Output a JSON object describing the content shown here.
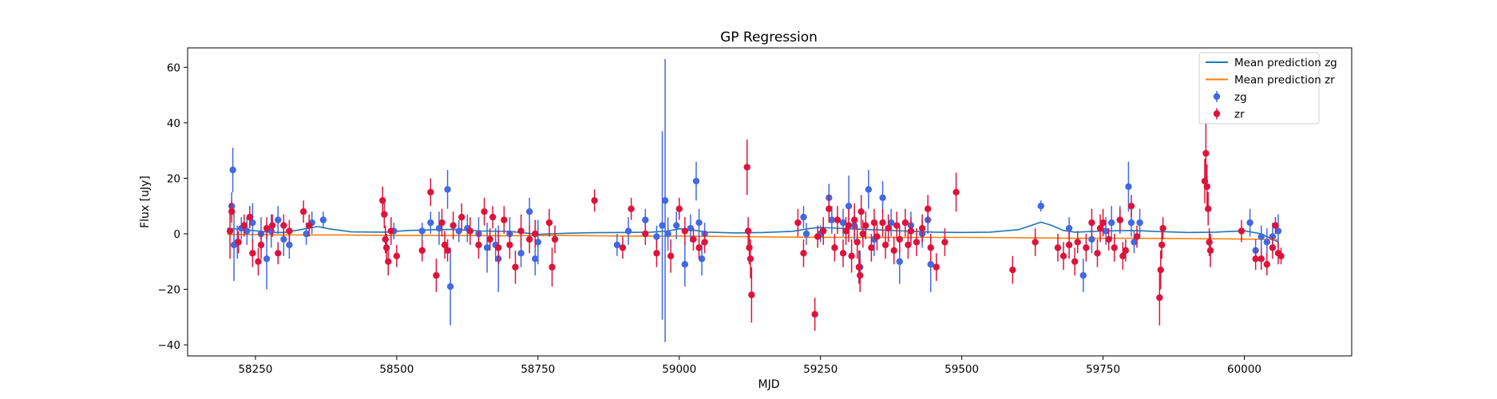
{
  "chart_data": {
    "type": "scatter",
    "title": "GP Regression",
    "xlabel": "MJD",
    "ylabel": "Flux [uJy]",
    "xlim": [
      58130,
      60190
    ],
    "ylim": [
      -44,
      67
    ],
    "xticks": [
      58250,
      58500,
      58750,
      59000,
      59250,
      59500,
      59750,
      60000
    ],
    "yticks": [
      -40,
      -20,
      0,
      20,
      40,
      60
    ],
    "grid": false,
    "legend_position": "top-right",
    "colors": {
      "zg_line": "#1f77b4",
      "zr_line": "#ff7f0e",
      "zg_points": "#4169e1",
      "zr_points": "#dc143c"
    },
    "series": [
      {
        "name": "Mean prediction zg",
        "kind": "line",
        "x": [
          58200,
          58240,
          58280,
          58300,
          58330,
          58360,
          58380,
          58420,
          58480,
          58520,
          58560,
          58600,
          58650,
          58700,
          58750,
          58800,
          58850,
          58900,
          58950,
          58980,
          59000,
          59030,
          59050,
          59100,
          59150,
          59200,
          59230,
          59250,
          59280,
          59300,
          59350,
          59400,
          59450,
          59500,
          59550,
          59600,
          59620,
          59640,
          59660,
          59680,
          59700,
          59750,
          59800,
          59850,
          59900,
          59950,
          59980,
          60000,
          60030,
          60060
        ],
        "y": [
          2.0,
          1.3,
          0.5,
          0.5,
          1.5,
          2.6,
          1.8,
          0.7,
          0.6,
          1.2,
          1.4,
          1.6,
          1.0,
          0.9,
          -0.2,
          0.2,
          0.4,
          0.5,
          0.6,
          1.0,
          1.8,
          1.2,
          0.6,
          0.3,
          0.5,
          0.9,
          1.9,
          2.3,
          2.0,
          1.8,
          1.4,
          1.0,
          0.6,
          0.5,
          0.6,
          1.5,
          2.8,
          4.2,
          3.0,
          1.2,
          0.6,
          1.0,
          1.2,
          0.8,
          0.5,
          0.6,
          0.9,
          1.1,
          0.0,
          -3.0
        ]
      },
      {
        "name": "Mean prediction zr",
        "kind": "line",
        "x": [
          58200,
          58300,
          58400,
          58500,
          58600,
          58700,
          58800,
          58900,
          59000,
          59100,
          59200,
          59300,
          59400,
          59500,
          59600,
          59700,
          59800,
          59900,
          60000,
          60040,
          60060
        ],
        "y": [
          -0.2,
          -0.4,
          -0.4,
          -0.6,
          -0.6,
          -0.7,
          -0.6,
          -0.8,
          -0.8,
          -1.0,
          -1.2,
          -1.3,
          -1.3,
          -1.3,
          -1.4,
          -1.6,
          -1.6,
          -1.7,
          -1.9,
          -2.0,
          -2.2
        ]
      },
      {
        "name": "zg",
        "kind": "errorbar",
        "points": [
          [
            58210,
            23,
            8
          ],
          [
            58208,
            10,
            5
          ],
          [
            58212,
            -4,
            13
          ],
          [
            58218,
            -3,
            6
          ],
          [
            58225,
            2,
            4
          ],
          [
            58235,
            1,
            5
          ],
          [
            58245,
            4,
            7
          ],
          [
            58260,
            0,
            6
          ],
          [
            58270,
            -9,
            11
          ],
          [
            58278,
            1,
            6
          ],
          [
            58290,
            5,
            5
          ],
          [
            58300,
            -2,
            6
          ],
          [
            58310,
            -4,
            5
          ],
          [
            58340,
            0,
            4
          ],
          [
            58350,
            4,
            4
          ],
          [
            58370,
            5,
            3
          ],
          [
            58495,
            1,
            3
          ],
          [
            58545,
            1,
            3
          ],
          [
            58560,
            4,
            4
          ],
          [
            58575,
            2,
            6
          ],
          [
            58590,
            16,
            7
          ],
          [
            58595,
            -19,
            14
          ],
          [
            58610,
            1,
            4
          ],
          [
            58625,
            2,
            5
          ],
          [
            58645,
            0,
            6
          ],
          [
            58660,
            -5,
            9
          ],
          [
            58675,
            -4,
            6
          ],
          [
            58680,
            -9,
            12
          ],
          [
            58700,
            0,
            6
          ],
          [
            58720,
            -7,
            5
          ],
          [
            58735,
            8,
            5
          ],
          [
            58745,
            -9,
            6
          ],
          [
            58750,
            -3,
            8
          ],
          [
            58890,
            -4,
            4
          ],
          [
            58910,
            1,
            5
          ],
          [
            58940,
            5,
            4
          ],
          [
            58960,
            -1,
            4
          ],
          [
            58970,
            3,
            34
          ],
          [
            58975,
            12,
            51
          ],
          [
            58980,
            0,
            6
          ],
          [
            58995,
            3,
            5
          ],
          [
            59010,
            -11,
            8
          ],
          [
            59020,
            2,
            5
          ],
          [
            59030,
            19,
            7
          ],
          [
            59035,
            4,
            5
          ],
          [
            59040,
            -9,
            6
          ],
          [
            59045,
            0,
            4
          ],
          [
            59220,
            6,
            4
          ],
          [
            59225,
            0,
            4
          ],
          [
            59250,
            0,
            3
          ],
          [
            59265,
            13,
            5
          ],
          [
            59270,
            5,
            5
          ],
          [
            59290,
            4,
            5
          ],
          [
            59300,
            10,
            11
          ],
          [
            59310,
            3,
            6
          ],
          [
            59320,
            -12,
            6
          ],
          [
            59335,
            16,
            7
          ],
          [
            59345,
            -2,
            6
          ],
          [
            59360,
            13,
            6
          ],
          [
            59375,
            4,
            5
          ],
          [
            59390,
            -10,
            8
          ],
          [
            59410,
            3,
            5
          ],
          [
            59430,
            0,
            5
          ],
          [
            59440,
            5,
            5
          ],
          [
            59445,
            -11,
            10
          ],
          [
            59640,
            10,
            2
          ],
          [
            59690,
            2,
            4
          ],
          [
            59715,
            -15,
            6
          ],
          [
            59730,
            -2,
            5
          ],
          [
            59755,
            1,
            5
          ],
          [
            59765,
            4,
            6
          ],
          [
            59780,
            5,
            5
          ],
          [
            59795,
            17,
            9
          ],
          [
            59800,
            4,
            5
          ],
          [
            59805,
            -3,
            4
          ],
          [
            59815,
            4,
            5
          ],
          [
            60010,
            4,
            5
          ],
          [
            60020,
            -6,
            4
          ],
          [
            60030,
            -1,
            4
          ],
          [
            60040,
            -3,
            5
          ],
          [
            60050,
            -1,
            5
          ],
          [
            60060,
            1,
            6
          ]
        ]
      },
      {
        "name": "zr",
        "kind": "errorbar",
        "points": [
          [
            58205,
            1,
            10
          ],
          [
            58208,
            8,
            4
          ],
          [
            58220,
            -3,
            4
          ],
          [
            58230,
            3,
            4
          ],
          [
            58240,
            6,
            4
          ],
          [
            58245,
            -7,
            5
          ],
          [
            58255,
            -10,
            5
          ],
          [
            58260,
            -4,
            5
          ],
          [
            58270,
            2,
            4
          ],
          [
            58280,
            3,
            4
          ],
          [
            58290,
            -7,
            4
          ],
          [
            58300,
            3,
            4
          ],
          [
            58310,
            1,
            4
          ],
          [
            58335,
            8,
            4
          ],
          [
            58345,
            3,
            4
          ],
          [
            58475,
            12,
            5
          ],
          [
            58478,
            7,
            5
          ],
          [
            58480,
            -2,
            5
          ],
          [
            58482,
            -5,
            5
          ],
          [
            58485,
            -10,
            5
          ],
          [
            58490,
            1,
            5
          ],
          [
            58500,
            -8,
            4
          ],
          [
            58545,
            -6,
            4
          ],
          [
            58560,
            15,
            5
          ],
          [
            58570,
            -15,
            6
          ],
          [
            58580,
            4,
            5
          ],
          [
            58585,
            -4,
            5
          ],
          [
            58590,
            -6,
            4
          ],
          [
            58600,
            3,
            5
          ],
          [
            58615,
            6,
            5
          ],
          [
            58630,
            1,
            5
          ],
          [
            58645,
            -4,
            5
          ],
          [
            58655,
            8,
            5
          ],
          [
            58665,
            -2,
            4
          ],
          [
            58670,
            6,
            4
          ],
          [
            58680,
            -5,
            6
          ],
          [
            58690,
            5,
            5
          ],
          [
            58700,
            -4,
            5
          ],
          [
            58710,
            -12,
            6
          ],
          [
            58720,
            1,
            6
          ],
          [
            58735,
            -2,
            5
          ],
          [
            58745,
            0,
            5
          ],
          [
            58770,
            4,
            5
          ],
          [
            58775,
            -12,
            7
          ],
          [
            58780,
            -2,
            5
          ],
          [
            58850,
            12,
            4
          ],
          [
            58900,
            -5,
            4
          ],
          [
            58915,
            9,
            4
          ],
          [
            58940,
            0,
            4
          ],
          [
            58960,
            -7,
            5
          ],
          [
            58985,
            -8,
            6
          ],
          [
            59000,
            9,
            4
          ],
          [
            59010,
            1,
            5
          ],
          [
            59025,
            -2,
            4
          ],
          [
            59035,
            -5,
            4
          ],
          [
            59045,
            -3,
            4
          ],
          [
            59120,
            24,
            10
          ],
          [
            59122,
            1,
            5
          ],
          [
            59124,
            -5,
            6
          ],
          [
            59126,
            -9,
            7
          ],
          [
            59128,
            -22,
            10
          ],
          [
            59210,
            4,
            5
          ],
          [
            59220,
            -7,
            5
          ],
          [
            59240,
            -29,
            6
          ],
          [
            59245,
            -1,
            4
          ],
          [
            59255,
            1,
            5
          ],
          [
            59265,
            9,
            5
          ],
          [
            59275,
            -5,
            5
          ],
          [
            59280,
            5,
            5
          ],
          [
            59290,
            -7,
            5
          ],
          [
            59295,
            1,
            5
          ],
          [
            59300,
            3,
            6
          ],
          [
            59305,
            -8,
            6
          ],
          [
            59310,
            5,
            6
          ],
          [
            59315,
            -3,
            6
          ],
          [
            59318,
            -12,
            6
          ],
          [
            59320,
            -15,
            6
          ],
          [
            59322,
            8,
            6
          ],
          [
            59325,
            0,
            5
          ],
          [
            59330,
            3,
            5
          ],
          [
            59340,
            -5,
            5
          ],
          [
            59345,
            4,
            5
          ],
          [
            59350,
            -1,
            5
          ],
          [
            59360,
            4,
            5
          ],
          [
            59365,
            -4,
            5
          ],
          [
            59370,
            2,
            5
          ],
          [
            59380,
            -6,
            5
          ],
          [
            59385,
            3,
            5
          ],
          [
            59390,
            -2,
            5
          ],
          [
            59400,
            4,
            5
          ],
          [
            59405,
            -4,
            5
          ],
          [
            59410,
            1,
            5
          ],
          [
            59420,
            -3,
            5
          ],
          [
            59430,
            2,
            5
          ],
          [
            59440,
            9,
            5
          ],
          [
            59445,
            -5,
            5
          ],
          [
            59455,
            -12,
            5
          ],
          [
            59470,
            -3,
            5
          ],
          [
            59490,
            15,
            7
          ],
          [
            59590,
            -13,
            5
          ],
          [
            59630,
            -3,
            5
          ],
          [
            59670,
            -5,
            5
          ],
          [
            59680,
            -8,
            5
          ],
          [
            59690,
            -4,
            5
          ],
          [
            59700,
            -10,
            5
          ],
          [
            59705,
            -3,
            4
          ],
          [
            59720,
            -5,
            5
          ],
          [
            59730,
            4,
            5
          ],
          [
            59740,
            -7,
            5
          ],
          [
            59745,
            2,
            5
          ],
          [
            59750,
            4,
            5
          ],
          [
            59760,
            -2,
            4
          ],
          [
            59770,
            -5,
            5
          ],
          [
            59780,
            5,
            4
          ],
          [
            59785,
            -8,
            5
          ],
          [
            59790,
            -6,
            4
          ],
          [
            59800,
            10,
            4
          ],
          [
            59810,
            -1,
            4
          ],
          [
            59850,
            -23,
            10
          ],
          [
            59852,
            -13,
            7
          ],
          [
            59854,
            -4,
            5
          ],
          [
            59856,
            2,
            4
          ],
          [
            59930,
            19,
            8
          ],
          [
            59932,
            29,
            13
          ],
          [
            59934,
            17,
            8
          ],
          [
            59936,
            9,
            6
          ],
          [
            59938,
            -3,
            5
          ],
          [
            59940,
            -6,
            6
          ],
          [
            59995,
            1,
            4
          ],
          [
            60020,
            -9,
            4
          ],
          [
            60030,
            -9,
            4
          ],
          [
            60040,
            -11,
            4
          ],
          [
            60050,
            -5,
            4
          ],
          [
            60055,
            3,
            3
          ],
          [
            60060,
            -7,
            4
          ],
          [
            60065,
            -8,
            3
          ]
        ]
      }
    ]
  }
}
